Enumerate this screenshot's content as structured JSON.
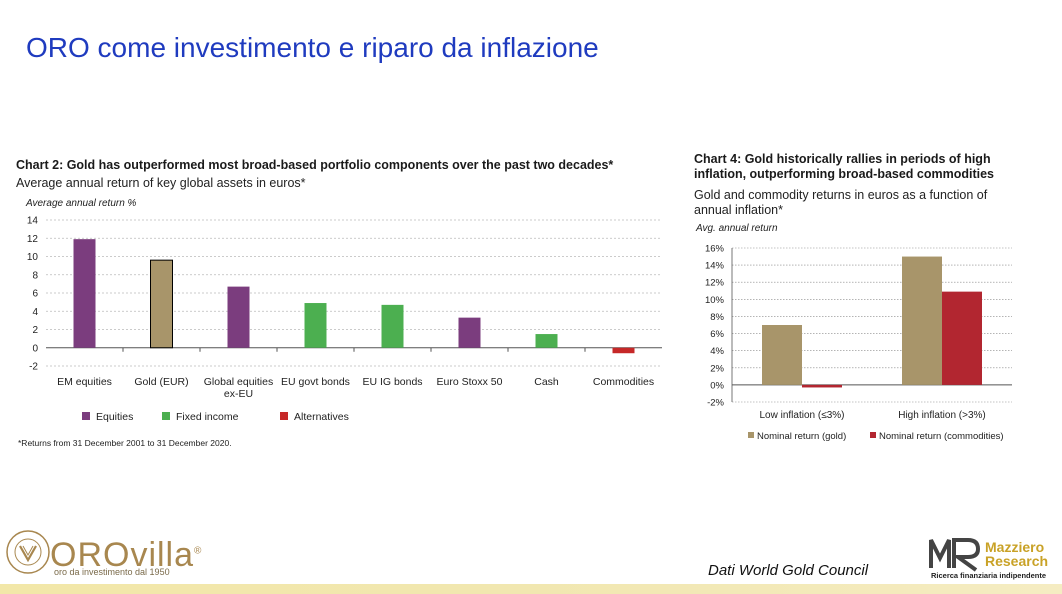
{
  "slide": {
    "title": "ORO come investimento e riparo da inflazione",
    "source": "Dati World Gold Council"
  },
  "logos": {
    "orovilla_brand": "OROvilla",
    "orovilla_registered": "®",
    "orovilla_tagline": "oro da investimento dal 1950",
    "orovilla_seal": "MARIO VILLA · MILANO",
    "mazziero_name_line1": "Mazziero",
    "mazziero_name_line2": "Research",
    "mazziero_tagline": "Ricerca finanziaria indipendente"
  },
  "chart_data": [
    {
      "type": "bar",
      "title": "Chart 2: Gold has outperformed most broad-based portfolio components over the past two decades*",
      "subtitle": "Average annual return of key global assets in euros*",
      "ylabel": "Average annual return  %",
      "xlabel": "",
      "ylim": [
        -2,
        14
      ],
      "yticks": [
        14,
        12,
        10,
        8,
        6,
        4,
        2,
        0,
        -2
      ],
      "grid": true,
      "categories": [
        "EM equities",
        "Gold (EUR)",
        "Global equities ex-EU",
        "EU govt bonds",
        "EU IG bonds",
        "Euro Stoxx 50",
        "Cash",
        "Commodities"
      ],
      "category_lines": [
        [
          "EM equities"
        ],
        [
          "Gold (EUR)"
        ],
        [
          "Global equities",
          "ex-EU"
        ],
        [
          "EU govt bonds"
        ],
        [
          "EU IG bonds"
        ],
        [
          "Euro Stoxx 50"
        ],
        [
          "Cash"
        ],
        [
          "Commodities"
        ]
      ],
      "values": [
        11.9,
        9.6,
        6.7,
        4.9,
        4.7,
        3.3,
        1.5,
        -0.6
      ],
      "bar_groups": [
        "Equities",
        "Gold",
        "Equities",
        "Fixed income",
        "Fixed income",
        "Equities",
        "Fixed income",
        "Alternatives"
      ],
      "group_colors": {
        "Equities": "#7b3d7e",
        "Gold": "#a8956a",
        "Fixed income": "#4caf50",
        "Alternatives": "#c62828"
      },
      "legend": [
        {
          "label": "Equities",
          "color": "#7b3d7e"
        },
        {
          "label": "Fixed income",
          "color": "#4caf50"
        },
        {
          "label": "Alternatives",
          "color": "#c62828"
        }
      ],
      "legend_position": "bottom",
      "footnote": "*Returns from 31 December 2001 to 31 December 2020."
    },
    {
      "type": "bar",
      "title": "Chart 4: Gold historically rallies in periods of high inflation, outperforming broad-based commodities",
      "subtitle": "Gold and commodity returns in euros as a function of annual inflation*",
      "ylabel": "Avg. annual return",
      "xlabel": "",
      "ylim": [
        -2,
        16
      ],
      "yticks": [
        "16%",
        "14%",
        "12%",
        "10%",
        "8%",
        "6%",
        "4%",
        "2%",
        "0%",
        "-2%"
      ],
      "ytick_values": [
        16,
        14,
        12,
        10,
        8,
        6,
        4,
        2,
        0,
        -2
      ],
      "grid": true,
      "categories": [
        "Low inflation (≤3%)",
        "High inflation (>3%)"
      ],
      "series": [
        {
          "name": "Nominal return (gold)",
          "color": "#a8956a",
          "values": [
            7.0,
            15.0
          ]
        },
        {
          "name": "Nominal return (commodities)",
          "color": "#b22630",
          "values": [
            -0.3,
            10.9
          ]
        }
      ],
      "legend_position": "bottom"
    }
  ]
}
